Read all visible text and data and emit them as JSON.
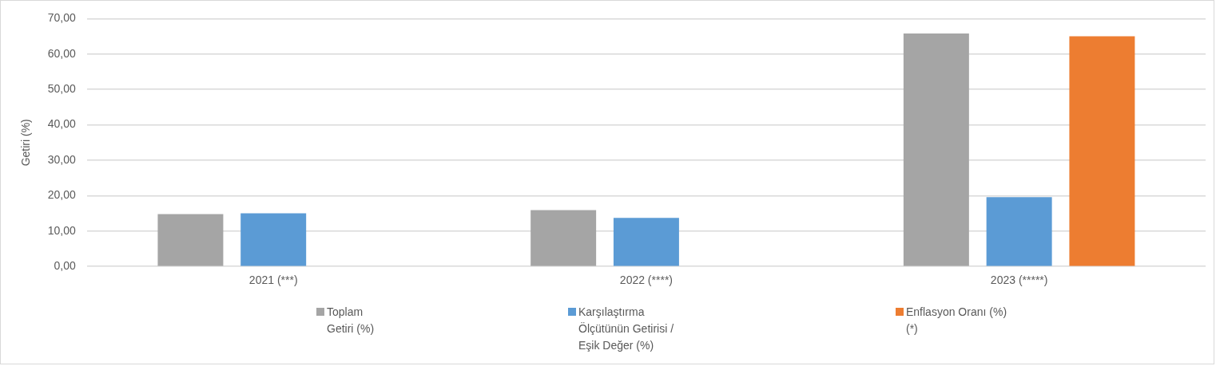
{
  "chart_data": {
    "type": "bar",
    "ylabel": "Getiri (%)",
    "categories": [
      "2021 (***)",
      "2022 (****)",
      "2023 (*****)"
    ],
    "series": [
      {
        "name": "Toplam Getiri (%)",
        "color": "#a5a5a5",
        "values": [
          14.8,
          15.9,
          65.8
        ]
      },
      {
        "name": "Karşılaştırma Ölçütünün Getirisi / Eşik Değer (%)",
        "color": "#5b9bd5",
        "values": [
          15.0,
          13.7,
          19.6
        ]
      },
      {
        "name": "Enflasyon Oranı (%) (*)",
        "color": "#ed7d31",
        "values": [
          null,
          null,
          65.0
        ]
      }
    ],
    "ylim": [
      0,
      70
    ],
    "yticks": [
      {
        "value": 0,
        "label": "0,00"
      },
      {
        "value": 10,
        "label": "10,00"
      },
      {
        "value": 20,
        "label": "20,00"
      },
      {
        "value": 30,
        "label": "30,00"
      },
      {
        "value": 40,
        "label": "40,00"
      },
      {
        "value": 50,
        "label": "50,00"
      },
      {
        "value": 60,
        "label": "60,00"
      },
      {
        "value": 70,
        "label": "70,00"
      }
    ],
    "grid": "y",
    "legend": "bottom"
  }
}
